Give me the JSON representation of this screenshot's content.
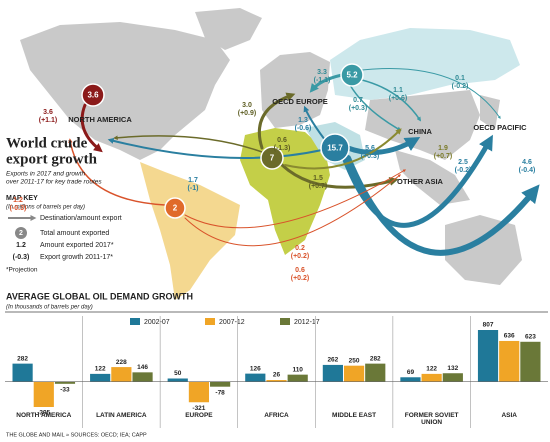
{
  "map": {
    "title_line1": "World crude",
    "title_line2": "export growth",
    "subtitle_line1": "Exports in 2017 and growth",
    "subtitle_line2": "over 2011-17 for key trade routes",
    "regions": [
      "NORTH AMERICA",
      "OECD EUROPE",
      "CHINA",
      "OTHER ASIA",
      "OECD PACIFIC"
    ],
    "origins": [
      {
        "amount": "3.6"
      },
      {
        "amount": "2"
      },
      {
        "amount": "7"
      },
      {
        "amount": "15.7"
      },
      {
        "amount": "5.2"
      }
    ],
    "flows": [
      {
        "amount": "3.6",
        "growth": "(+1.1)"
      },
      {
        "amount": "1.2",
        "growth": "(-0.3)"
      },
      {
        "amount": "0.6",
        "growth": "(-1.3)"
      },
      {
        "amount": "1.7",
        "growth": "(-1)"
      },
      {
        "amount": "3.0",
        "growth": "(+0.9)"
      },
      {
        "amount": "1.3",
        "growth": "(-0.6)"
      },
      {
        "amount": "3.3",
        "growth": "(-1.1)"
      },
      {
        "amount": "0.7",
        "growth": "(+0.3)"
      },
      {
        "amount": "1.1",
        "growth": "(+0.6)"
      },
      {
        "amount": "0.1",
        "growth": "(-0.2)"
      },
      {
        "amount": "5.6",
        "growth": "(+0.3)"
      },
      {
        "amount": "1.5",
        "growth": "(+0.7)"
      },
      {
        "amount": "1.9",
        "growth": "(+0.7)"
      },
      {
        "amount": "2.5",
        "growth": "(-0.2)"
      },
      {
        "amount": "4.6",
        "growth": "(-0.4)"
      },
      {
        "amount": "0.2",
        "growth": "(+0.2)"
      },
      {
        "amount": "0.6",
        "growth": "(+0.2)"
      }
    ],
    "key": {
      "title": "MAP KEY",
      "units": "(In millions of barrels per day)",
      "arrow": "Destination/amount export",
      "total_sample": "2",
      "total": "Total amount exported",
      "amount_sample": "1.2",
      "amount": "Amount exported 2017*",
      "growth_sample": "(-0.3)",
      "growth": "Export growth 2011-17*",
      "note": "*Projection"
    }
  },
  "chart_data": {
    "type": "bar",
    "title": "AVERAGE GLOBAL OIL DEMAND GROWTH",
    "subtitle": "(In thousands of barrels per day)",
    "categories": [
      "NORTH AMERICA",
      "LATIN AMERICA",
      "EUROPE",
      "AFRICA",
      "MIDDLE EAST",
      "FORMER SOVIET UNION",
      "ASIA"
    ],
    "series": [
      {
        "name": "2002-07",
        "color": "#1f7898",
        "values": [
          282,
          122,
          50,
          126,
          262,
          69,
          807
        ]
      },
      {
        "name": "2007-12",
        "color": "#f0a526",
        "values": [
          -395,
          228,
          -321,
          26,
          250,
          122,
          636
        ]
      },
      {
        "name": "2012-17",
        "color": "#6a7838",
        "values": [
          -33,
          146,
          -78,
          110,
          282,
          132,
          623
        ]
      }
    ]
  },
  "footer": "THE GLOBE AND MAIL » SOURCES: OECD; IEA; CAPP"
}
